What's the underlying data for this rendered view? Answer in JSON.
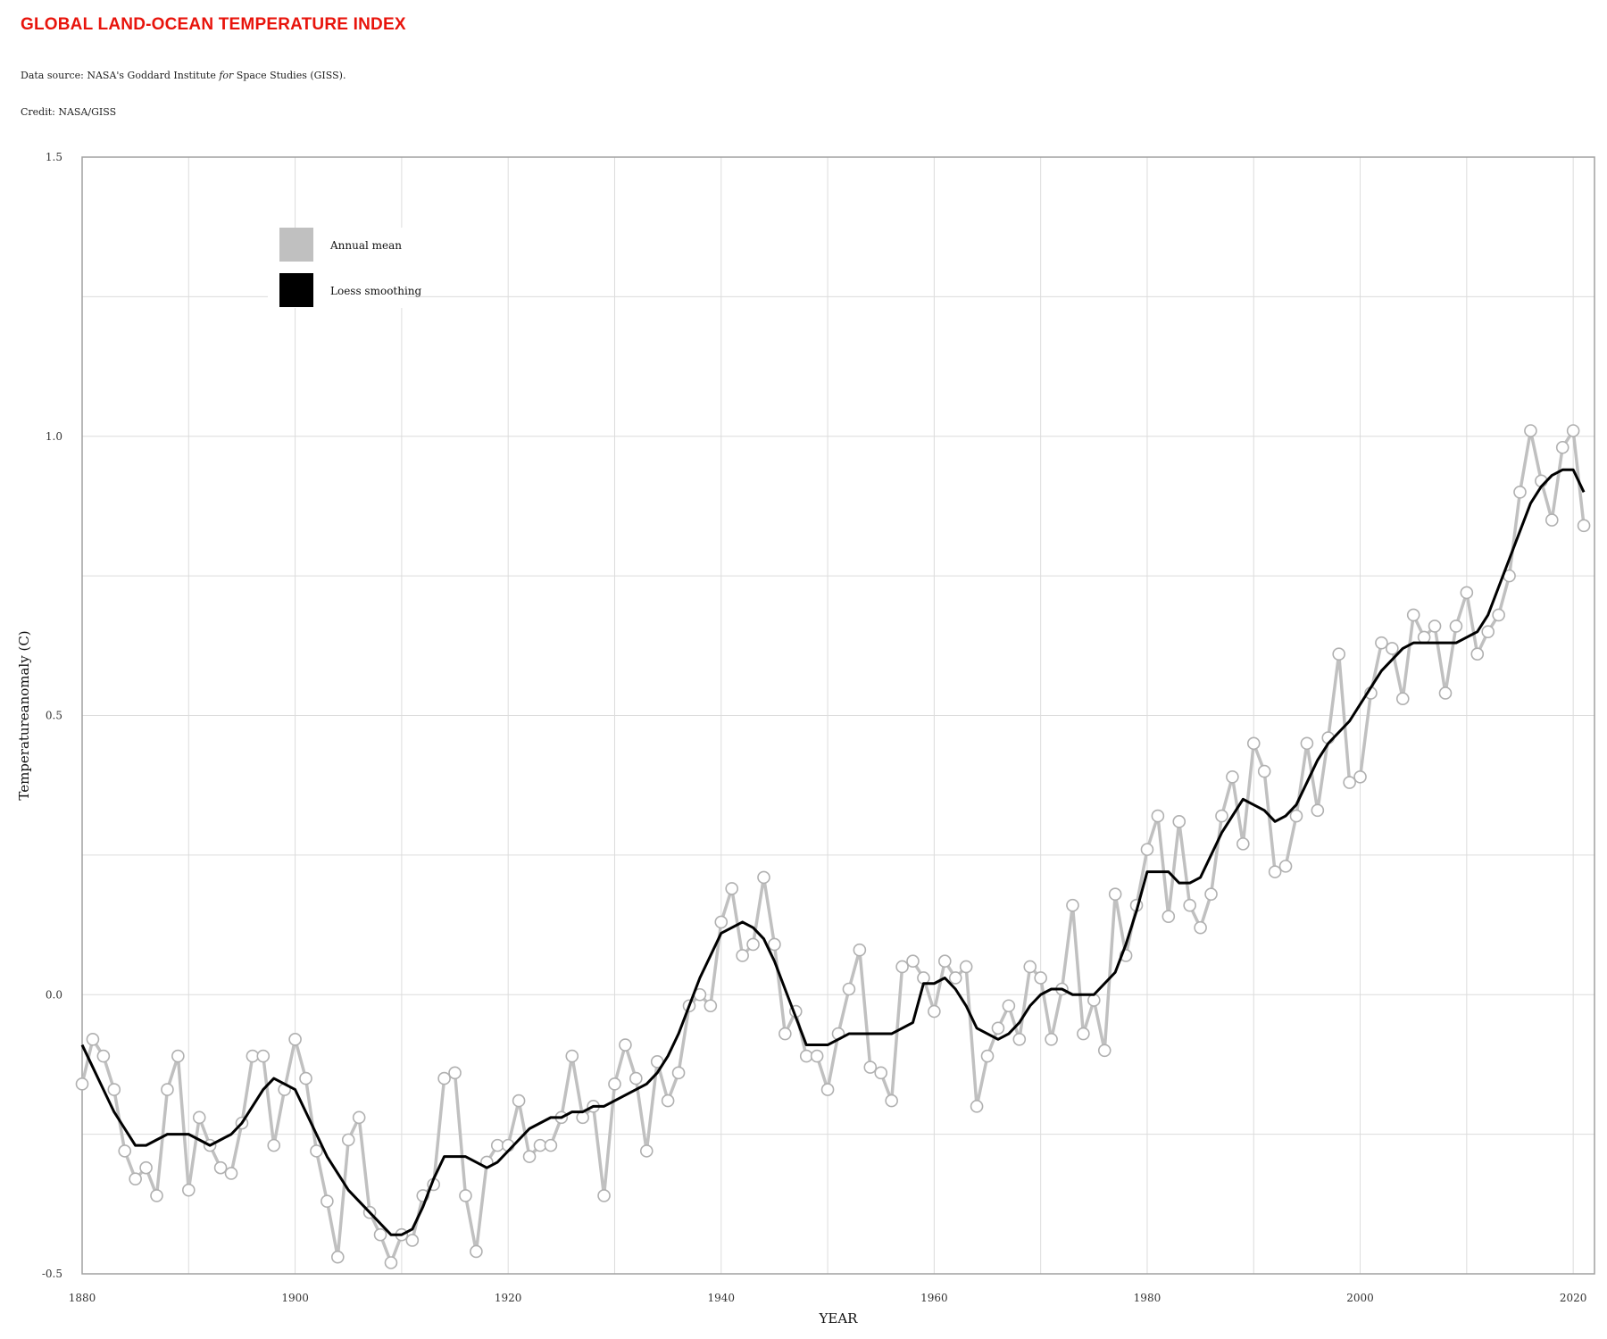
{
  "header": {
    "title": "GLOBAL LAND-OCEAN TEMPERATURE INDEX",
    "source_prefix": "Data source: NASA's Goddard Institute ",
    "source_italic": "for",
    "source_suffix": " Space Studies (GISS).",
    "credit": "Credit: NASA/GISS"
  },
  "chart_data": {
    "type": "line",
    "title": "GLOBAL LAND-OCEAN TEMPERATURE INDEX",
    "xlabel": "YEAR",
    "ylabel": "Temperatureanomaly (C)",
    "xlim": [
      1880,
      2022
    ],
    "ylim": [
      -0.5,
      1.5
    ],
    "x_ticks": [
      1880,
      1900,
      1920,
      1940,
      1960,
      1980,
      2000,
      2020
    ],
    "y_ticks": [
      "-0.5",
      "0.0",
      "0.5",
      "1.0",
      "1.5"
    ],
    "grid": true,
    "legend_position": "top-left",
    "colors": {
      "annual": "#c0c0c0",
      "smooth": "#000000",
      "grid": "#dcdcdc",
      "frame": "#a0a0a0"
    },
    "series": [
      {
        "name": "Annual mean",
        "marker": "circle",
        "x": [
          1880,
          1881,
          1882,
          1883,
          1884,
          1885,
          1886,
          1887,
          1888,
          1889,
          1890,
          1891,
          1892,
          1893,
          1894,
          1895,
          1896,
          1897,
          1898,
          1899,
          1900,
          1901,
          1902,
          1903,
          1904,
          1905,
          1906,
          1907,
          1908,
          1909,
          1910,
          1911,
          1912,
          1913,
          1914,
          1915,
          1916,
          1917,
          1918,
          1919,
          1920,
          1921,
          1922,
          1923,
          1924,
          1925,
          1926,
          1927,
          1928,
          1929,
          1930,
          1931,
          1932,
          1933,
          1934,
          1935,
          1936,
          1937,
          1938,
          1939,
          1940,
          1941,
          1942,
          1943,
          1944,
          1945,
          1946,
          1947,
          1948,
          1949,
          1950,
          1951,
          1952,
          1953,
          1954,
          1955,
          1956,
          1957,
          1958,
          1959,
          1960,
          1961,
          1962,
          1963,
          1964,
          1965,
          1966,
          1967,
          1968,
          1969,
          1970,
          1971,
          1972,
          1973,
          1974,
          1975,
          1976,
          1977,
          1978,
          1979,
          1980,
          1981,
          1982,
          1983,
          1984,
          1985,
          1986,
          1987,
          1988,
          1989,
          1990,
          1991,
          1992,
          1993,
          1994,
          1995,
          1996,
          1997,
          1998,
          1999,
          2000,
          2001,
          2002,
          2003,
          2004,
          2005,
          2006,
          2007,
          2008,
          2009,
          2010,
          2011,
          2012,
          2013,
          2014,
          2015,
          2016,
          2017,
          2018,
          2019,
          2020,
          2021
        ],
        "values": [
          -0.16,
          -0.08,
          -0.11,
          -0.17,
          -0.28,
          -0.33,
          -0.31,
          -0.36,
          -0.17,
          -0.11,
          -0.35,
          -0.22,
          -0.27,
          -0.31,
          -0.32,
          -0.23,
          -0.11,
          -0.11,
          -0.27,
          -0.17,
          -0.08,
          -0.15,
          -0.28,
          -0.37,
          -0.47,
          -0.26,
          -0.22,
          -0.39,
          -0.43,
          -0.48,
          -0.43,
          -0.44,
          -0.36,
          -0.34,
          -0.15,
          -0.14,
          -0.36,
          -0.46,
          -0.3,
          -0.27,
          -0.27,
          -0.19,
          -0.29,
          -0.27,
          -0.27,
          -0.22,
          -0.11,
          -0.22,
          -0.2,
          -0.36,
          -0.16,
          -0.09,
          -0.15,
          -0.28,
          -0.12,
          -0.19,
          -0.14,
          -0.02,
          0.0,
          -0.02,
          0.13,
          0.19,
          0.07,
          0.09,
          0.21,
          0.09,
          -0.07,
          -0.03,
          -0.11,
          -0.11,
          -0.17,
          -0.07,
          0.01,
          0.08,
          -0.13,
          -0.14,
          -0.19,
          0.05,
          0.06,
          0.03,
          -0.03,
          0.06,
          0.03,
          0.05,
          -0.2,
          -0.11,
          -0.06,
          -0.02,
          -0.08,
          0.05,
          0.03,
          -0.08,
          0.01,
          0.16,
          -0.07,
          -0.01,
          -0.1,
          0.18,
          0.07,
          0.16,
          0.26,
          0.32,
          0.14,
          0.31,
          0.16,
          0.12,
          0.18,
          0.32,
          0.39,
          0.27,
          0.45,
          0.4,
          0.22,
          0.23,
          0.32,
          0.45,
          0.33,
          0.46,
          0.61,
          0.38,
          0.39,
          0.54,
          0.63,
          0.62,
          0.53,
          0.68,
          0.64,
          0.66,
          0.54,
          0.66,
          0.72,
          0.61,
          0.65,
          0.68,
          0.75,
          0.9,
          1.01,
          0.92,
          0.85,
          0.98,
          1.01,
          0.84
        ]
      },
      {
        "name": "Loess smoothing",
        "marker": "none",
        "x": [
          1880,
          1881,
          1882,
          1883,
          1884,
          1885,
          1886,
          1887,
          1888,
          1889,
          1890,
          1891,
          1892,
          1893,
          1894,
          1895,
          1896,
          1897,
          1898,
          1899,
          1900,
          1901,
          1902,
          1903,
          1904,
          1905,
          1906,
          1907,
          1908,
          1909,
          1910,
          1911,
          1912,
          1913,
          1914,
          1915,
          1916,
          1917,
          1918,
          1919,
          1920,
          1921,
          1922,
          1923,
          1924,
          1925,
          1926,
          1927,
          1928,
          1929,
          1930,
          1931,
          1932,
          1933,
          1934,
          1935,
          1936,
          1937,
          1938,
          1939,
          1940,
          1941,
          1942,
          1943,
          1944,
          1945,
          1946,
          1947,
          1948,
          1949,
          1950,
          1951,
          1952,
          1953,
          1954,
          1955,
          1956,
          1957,
          1958,
          1959,
          1960,
          1961,
          1962,
          1963,
          1964,
          1965,
          1966,
          1967,
          1968,
          1969,
          1970,
          1971,
          1972,
          1973,
          1974,
          1975,
          1976,
          1977,
          1978,
          1979,
          1980,
          1981,
          1982,
          1983,
          1984,
          1985,
          1986,
          1987,
          1988,
          1989,
          1990,
          1991,
          1992,
          1993,
          1994,
          1995,
          1996,
          1997,
          1998,
          1999,
          2000,
          2001,
          2002,
          2003,
          2004,
          2005,
          2006,
          2007,
          2008,
          2009,
          2010,
          2011,
          2012,
          2013,
          2014,
          2015,
          2016,
          2017,
          2018,
          2019,
          2020,
          2021
        ],
        "values": [
          -0.09,
          -0.13,
          -0.17,
          -0.21,
          -0.24,
          -0.27,
          -0.27,
          -0.26,
          -0.25,
          -0.25,
          -0.25,
          -0.26,
          -0.27,
          -0.26,
          -0.25,
          -0.23,
          -0.2,
          -0.17,
          -0.15,
          -0.16,
          -0.17,
          -0.21,
          -0.25,
          -0.29,
          -0.32,
          -0.35,
          -0.37,
          -0.39,
          -0.41,
          -0.43,
          -0.43,
          -0.42,
          -0.38,
          -0.33,
          -0.29,
          -0.29,
          -0.29,
          -0.3,
          -0.31,
          -0.3,
          -0.28,
          -0.26,
          -0.24,
          -0.23,
          -0.22,
          -0.22,
          -0.21,
          -0.21,
          -0.2,
          -0.2,
          -0.19,
          -0.18,
          -0.17,
          -0.16,
          -0.14,
          -0.11,
          -0.07,
          -0.02,
          0.03,
          0.07,
          0.11,
          0.12,
          0.13,
          0.12,
          0.1,
          0.06,
          0.01,
          -0.04,
          -0.09,
          -0.09,
          -0.09,
          -0.08,
          -0.07,
          -0.07,
          -0.07,
          -0.07,
          -0.07,
          -0.06,
          -0.05,
          0.02,
          0.02,
          0.03,
          0.01,
          -0.02,
          -0.06,
          -0.07,
          -0.08,
          -0.07,
          -0.05,
          -0.02,
          0.0,
          0.01,
          0.01,
          0.0,
          0.0,
          0.0,
          0.02,
          0.04,
          0.09,
          0.15,
          0.22,
          0.22,
          0.22,
          0.2,
          0.2,
          0.21,
          0.25,
          0.29,
          0.32,
          0.35,
          0.34,
          0.33,
          0.31,
          0.32,
          0.34,
          0.38,
          0.42,
          0.45,
          0.47,
          0.49,
          0.52,
          0.55,
          0.58,
          0.6,
          0.62,
          0.63,
          0.63,
          0.63,
          0.63,
          0.63,
          0.64,
          0.65,
          0.68,
          0.73,
          0.78,
          0.83,
          0.88,
          0.91,
          0.93,
          0.94,
          0.94,
          0.9
        ]
      }
    ]
  }
}
